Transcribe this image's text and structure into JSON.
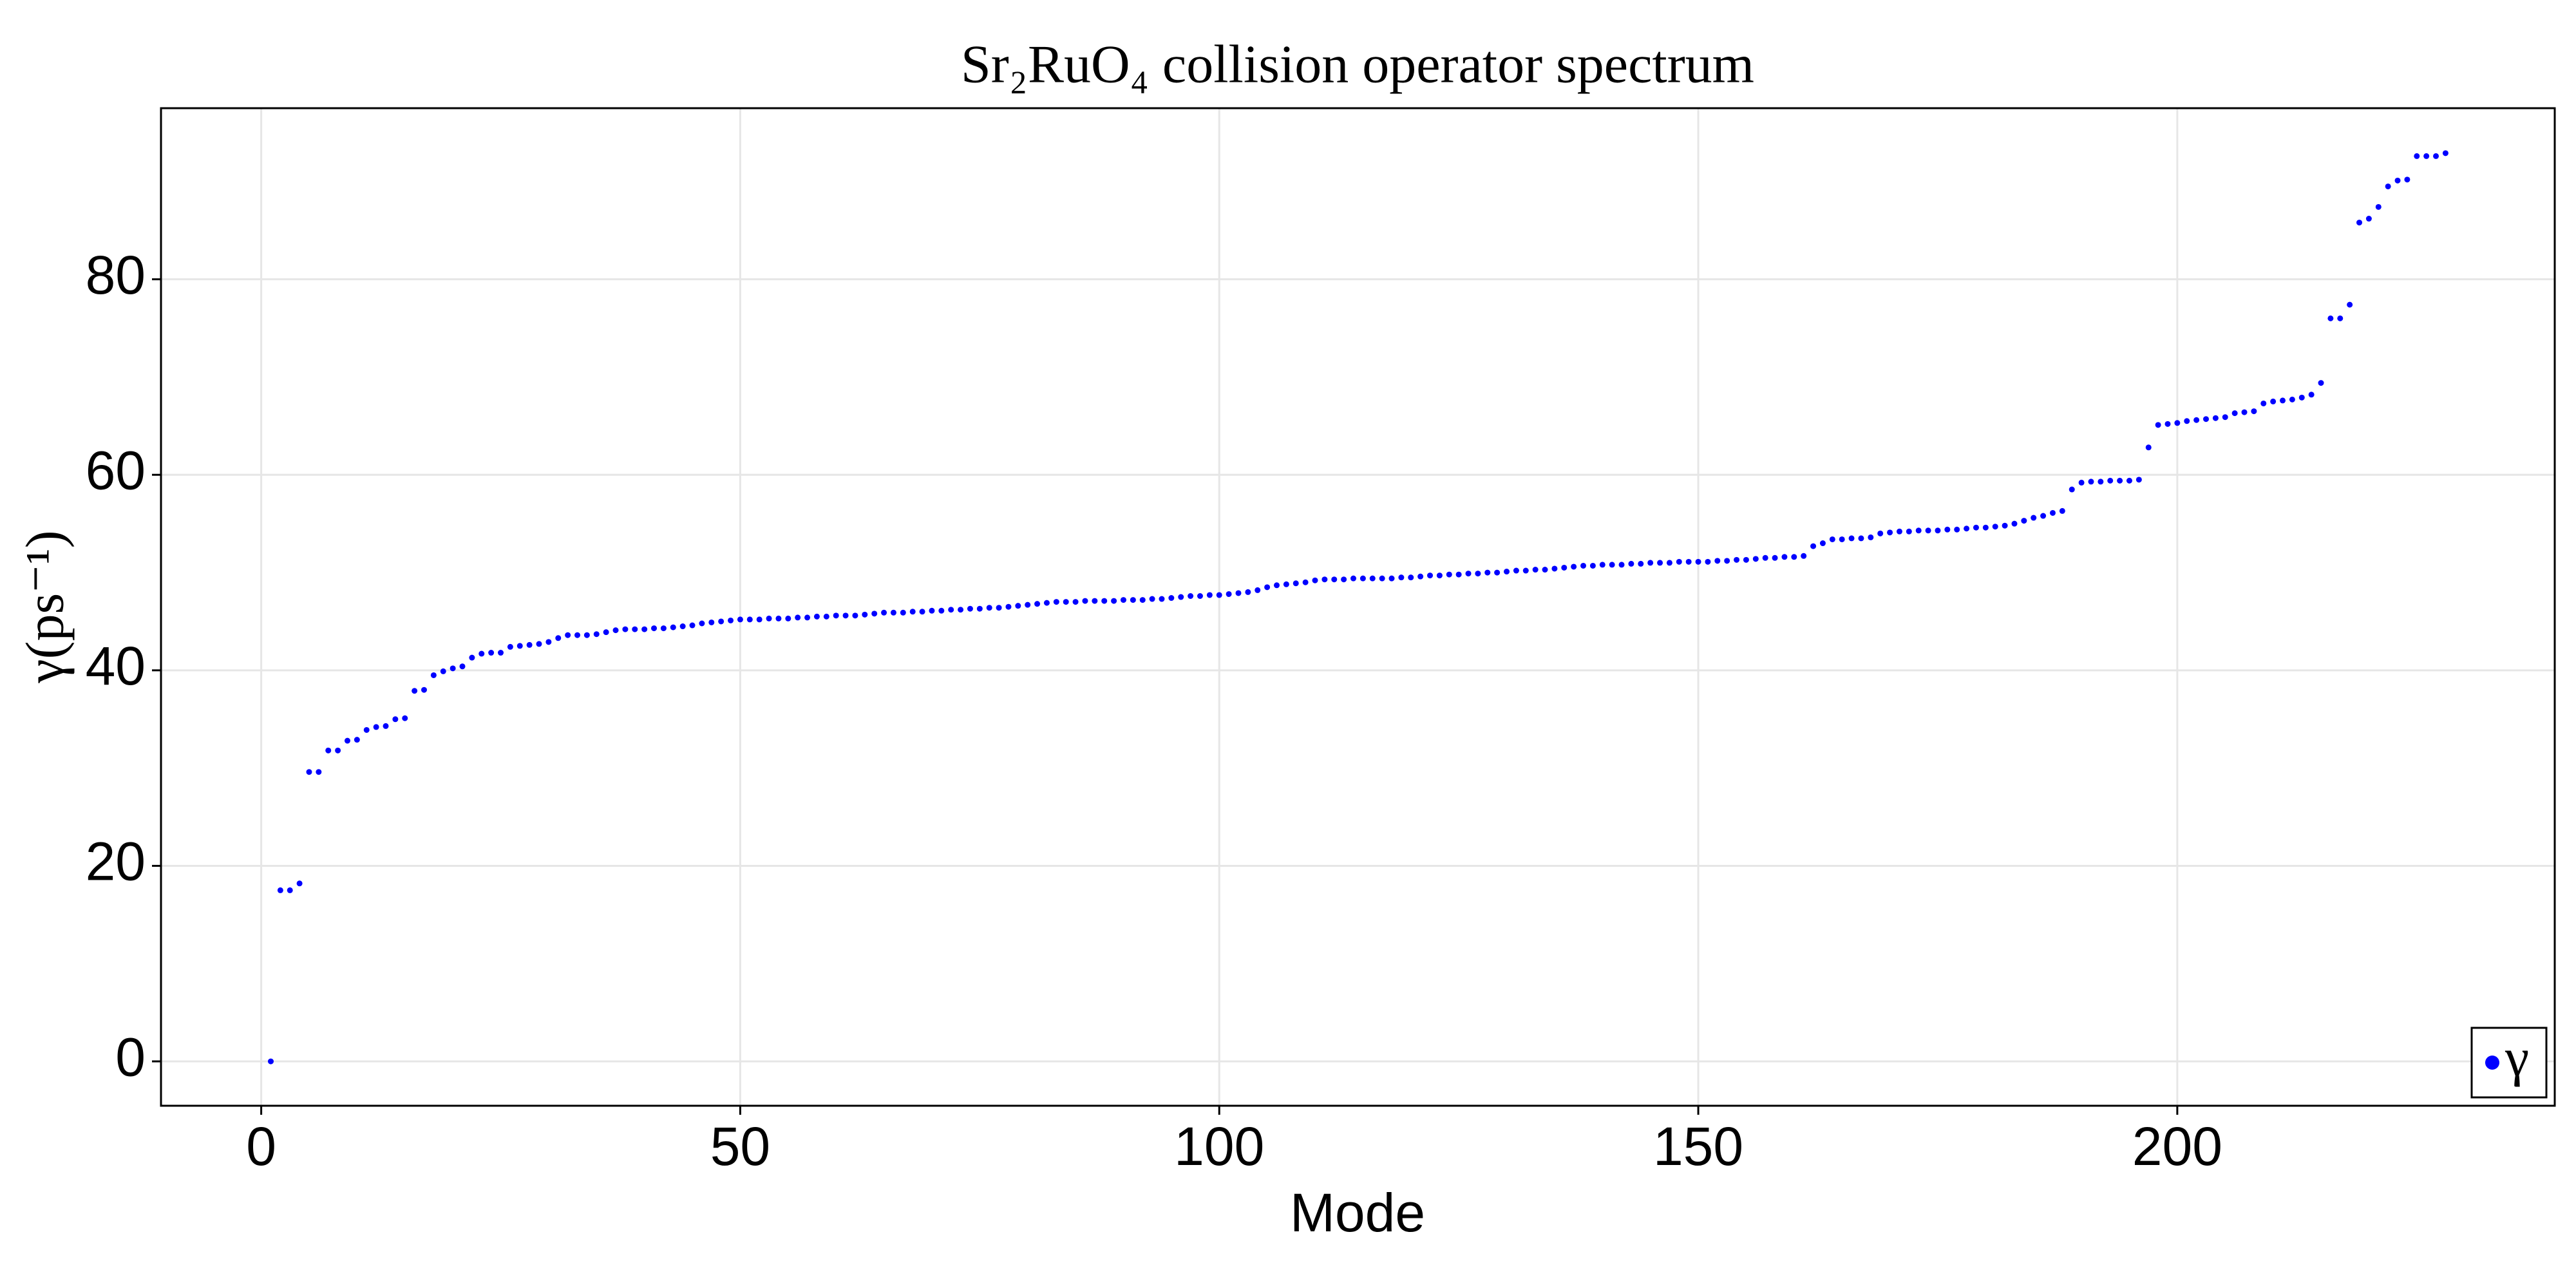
{
  "chart_data": {
    "type": "scatter",
    "title": "Sr₂RuO₄ collision operator spectrum",
    "x_label": "Mode",
    "y_label": "γ(ps⁻¹)",
    "xlim": [
      -10.46,
      239.4
    ],
    "ylim": [
      -4.54,
      97.5
    ],
    "xticks": [
      0,
      50,
      100,
      150,
      200
    ],
    "yticks": [
      0,
      20,
      40,
      60,
      80
    ],
    "grid": true,
    "legend": "bottom-right",
    "x": [
      1,
      2,
      3,
      4,
      5,
      6,
      7,
      8,
      9,
      10,
      11,
      12,
      13,
      14,
      15,
      16,
      17,
      18,
      19,
      20,
      21,
      22,
      23,
      24,
      25,
      26,
      27,
      28,
      29,
      30,
      31,
      32,
      33,
      34,
      35,
      36,
      37,
      38,
      39,
      40,
      41,
      42,
      43,
      44,
      45,
      46,
      47,
      48,
      49,
      50,
      51,
      52,
      53,
      54,
      55,
      56,
      57,
      58,
      59,
      60,
      61,
      62,
      63,
      64,
      65,
      66,
      67,
      68,
      69,
      70,
      71,
      72,
      73,
      74,
      75,
      76,
      77,
      78,
      79,
      80,
      81,
      82,
      83,
      84,
      85,
      86,
      87,
      88,
      89,
      90,
      91,
      92,
      93,
      94,
      95,
      96,
      97,
      98,
      99,
      100,
      101,
      102,
      103,
      104,
      105,
      106,
      107,
      108,
      109,
      110,
      111,
      112,
      113,
      114,
      115,
      116,
      117,
      118,
      119,
      120,
      121,
      122,
      123,
      124,
      125,
      126,
      127,
      128,
      129,
      130,
      131,
      132,
      133,
      134,
      135,
      136,
      137,
      138,
      139,
      140,
      141,
      142,
      143,
      144,
      145,
      146,
      147,
      148,
      149,
      150,
      151,
      152,
      153,
      154,
      155,
      156,
      157,
      158,
      159,
      160,
      161,
      162,
      163,
      164,
      165,
      166,
      167,
      168,
      169,
      170,
      171,
      172,
      173,
      174,
      175,
      176,
      177,
      178,
      179,
      180,
      181,
      182,
      183,
      184,
      185,
      186,
      187,
      188,
      189,
      190,
      191,
      192,
      193,
      194,
      195,
      196,
      197,
      198,
      199,
      200,
      201,
      202,
      203,
      204,
      205,
      206,
      207,
      208,
      209,
      210,
      211,
      212,
      213,
      214,
      215,
      216,
      217,
      218,
      219,
      220,
      221,
      222,
      223,
      224,
      225,
      226,
      227,
      228
    ],
    "series": [
      {
        "name": "γ",
        "color": "#0000ff",
        "values": [
          0,
          17.5,
          17.5,
          18.2,
          29.6,
          29.6,
          31.8,
          31.8,
          32.8,
          32.9,
          33.9,
          34.2,
          34.3,
          35.0,
          35.1,
          37.9,
          38.0,
          39.5,
          39.9,
          40.2,
          40.4,
          41.3,
          41.7,
          41.8,
          41.8,
          42.4,
          42.5,
          42.6,
          42.7,
          42.9,
          43.3,
          43.6,
          43.6,
          43.6,
          43.7,
          43.9,
          44.1,
          44.2,
          44.2,
          44.2,
          44.3,
          44.3,
          44.4,
          44.5,
          44.6,
          44.8,
          44.9,
          45.0,
          45.1,
          45.2,
          45.2,
          45.2,
          45.3,
          45.3,
          45.3,
          45.4,
          45.4,
          45.5,
          45.5,
          45.6,
          45.6,
          45.6,
          45.7,
          45.8,
          45.9,
          45.9,
          45.9,
          46.0,
          46.0,
          46.1,
          46.1,
          46.2,
          46.2,
          46.3,
          46.3,
          46.4,
          46.4,
          46.5,
          46.6,
          46.7,
          46.8,
          46.9,
          47.0,
          47.0,
          47.0,
          47.1,
          47.1,
          47.1,
          47.1,
          47.2,
          47.2,
          47.2,
          47.3,
          47.3,
          47.4,
          47.5,
          47.6,
          47.6,
          47.7,
          47.7,
          47.8,
          47.9,
          48.0,
          48.2,
          48.5,
          48.7,
          48.8,
          48.9,
          49.0,
          49.2,
          49.3,
          49.3,
          49.3,
          49.4,
          49.4,
          49.4,
          49.4,
          49.4,
          49.5,
          49.5,
          49.6,
          49.7,
          49.7,
          49.8,
          49.8,
          49.9,
          49.9,
          50.0,
          50.0,
          50.1,
          50.2,
          50.2,
          50.3,
          50.3,
          50.4,
          50.5,
          50.6,
          50.7,
          50.7,
          50.8,
          50.8,
          50.8,
          50.9,
          50.9,
          51.0,
          51.0,
          51.0,
          51.1,
          51.1,
          51.1,
          51.1,
          51.2,
          51.2,
          51.3,
          51.3,
          51.4,
          51.5,
          51.5,
          51.6,
          51.6,
          51.7,
          52.7,
          53.0,
          53.4,
          53.4,
          53.5,
          53.5,
          53.6,
          54.0,
          54.1,
          54.2,
          54.2,
          54.3,
          54.3,
          54.3,
          54.4,
          54.4,
          54.5,
          54.6,
          54.6,
          54.7,
          54.8,
          55.0,
          55.3,
          55.6,
          55.8,
          56.1,
          56.3,
          58.5,
          59.2,
          59.3,
          59.3,
          59.4,
          59.4,
          59.4,
          59.5,
          62.8,
          65.1,
          65.2,
          65.3,
          65.5,
          65.6,
          65.7,
          65.8,
          65.9,
          66.3,
          66.4,
          66.5,
          67.3,
          67.5,
          67.6,
          67.7,
          67.9,
          68.2,
          69.4,
          76.0,
          76.0,
          77.4,
          85.8,
          86.2,
          87.4,
          89.5,
          90.1,
          90.2,
          92.6,
          92.6,
          92.6,
          92.9
        ]
      }
    ]
  }
}
